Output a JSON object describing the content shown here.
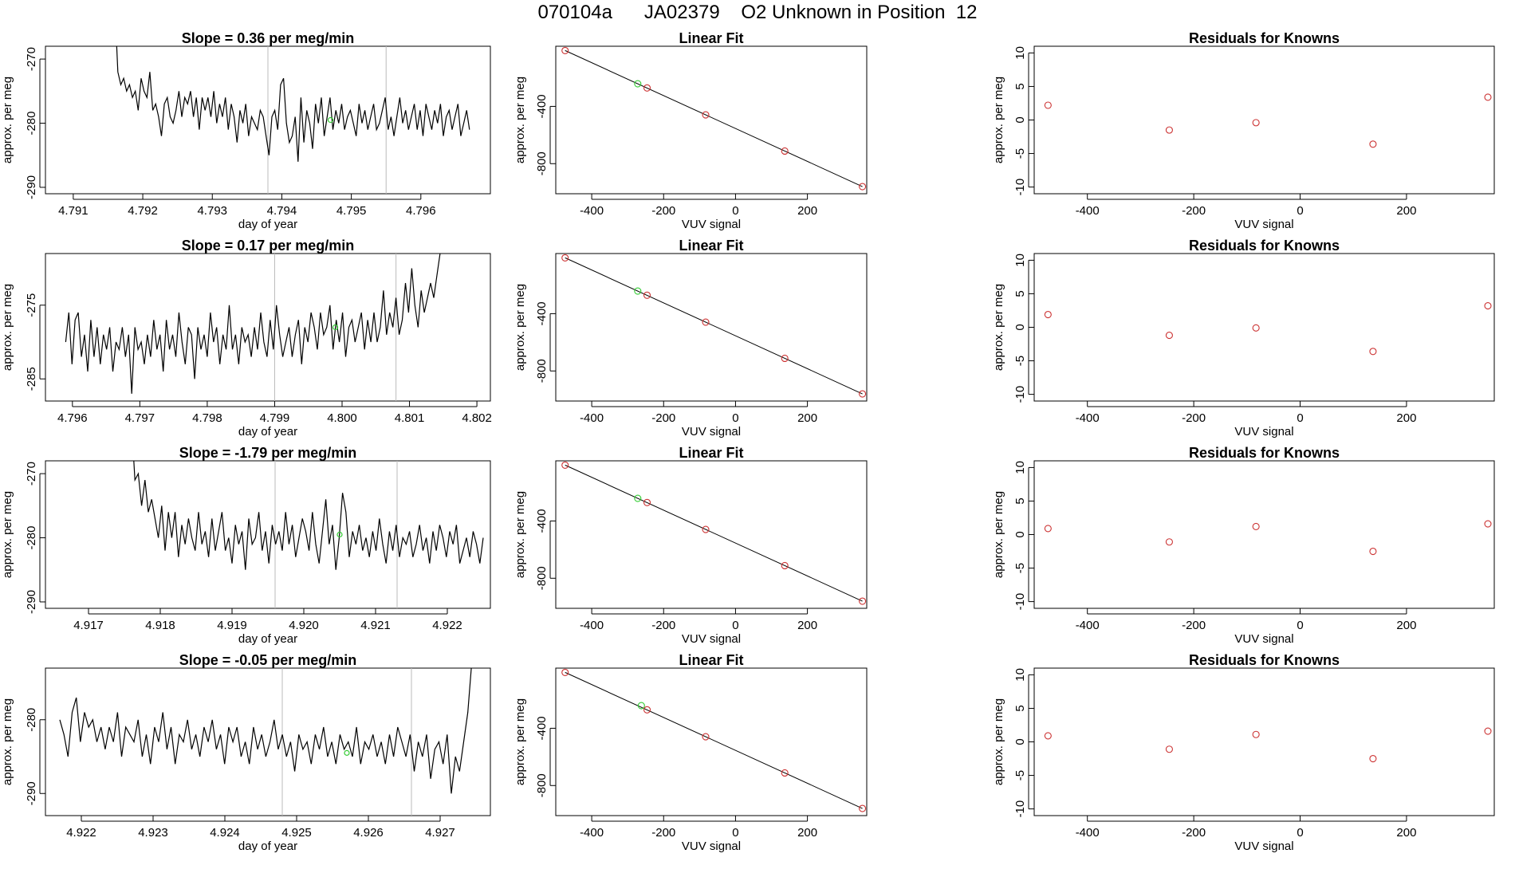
{
  "figure": {
    "title": "070104a      JA02379    O2 Unknown in Position  12"
  },
  "colors": {
    "line": "#000000",
    "known": "#cc3333",
    "unknown": "#33cc33",
    "marker_line": "#bbbbbb"
  },
  "chart_data": [
    {
      "type": "line",
      "row": 0,
      "title": "Slope =  0.36  per meg/min",
      "xlabel": "day of year",
      "ylabel": "approx. per meg",
      "xlim": [
        4.7906,
        4.797
      ],
      "ylim": [
        -291,
        -268
      ],
      "xticks": [
        4.791,
        4.792,
        4.793,
        4.794,
        4.795,
        4.796
      ],
      "xtick_labels": [
        "4.791",
        "4.792",
        "4.793",
        "4.794",
        "4.795",
        "4.796"
      ],
      "yticks": [
        -270,
        -280,
        -290
      ],
      "ytick_labels": [
        "-270",
        "-280",
        "-290"
      ],
      "markers_x": [
        4.7938,
        4.7955
      ],
      "series_x_start": 4.7916,
      "series_x_end": 4.7967,
      "series_y": [
        -262,
        -272,
        -274,
        -273,
        -275,
        -274,
        -276,
        -275,
        -278,
        -273,
        -275,
        -276,
        -272,
        -278,
        -277,
        -279,
        -282,
        -277,
        -276,
        -279,
        -280,
        -278,
        -275,
        -279,
        -276,
        -277,
        -275,
        -279,
        -276,
        -281,
        -276,
        -278,
        -276,
        -279,
        -275,
        -280,
        -277,
        -279,
        -276,
        -281,
        -277,
        -279,
        -283,
        -278,
        -280,
        -277,
        -282,
        -279,
        -280,
        -281,
        -278,
        -279,
        -282,
        -285,
        -279,
        -278,
        -281,
        -274,
        -273,
        -280,
        -283,
        -282,
        -279,
        -286,
        -276,
        -283,
        -278,
        -280,
        -284,
        -277,
        -280,
        -276,
        -282,
        -279,
        -276,
        -281,
        -278,
        -280,
        -277,
        -281,
        -279,
        -278,
        -280,
        -282,
        -277,
        -280,
        -278,
        -281,
        -279,
        -277,
        -281,
        -280,
        -278,
        -276,
        -281,
        -279,
        -282,
        -279,
        -276,
        -280,
        -278,
        -281,
        -279,
        -277,
        -281,
        -278,
        -282,
        -277,
        -279,
        -281,
        -278,
        -280,
        -277,
        -282,
        -279,
        -278,
        -281,
        -279,
        -277,
        -282,
        -280,
        -278,
        -281
      ],
      "unknown_point": {
        "x": 4.7947,
        "y": -279.5
      }
    },
    {
      "type": "line",
      "row": 1,
      "title": "Slope =  0.17  per meg/min",
      "xlabel": "day of year",
      "ylabel": "approx. per meg",
      "xlim": [
        4.7956,
        4.8022
      ],
      "ylim": [
        -288,
        -268
      ],
      "xticks": [
        4.796,
        4.797,
        4.798,
        4.799,
        4.8,
        4.801,
        4.802
      ],
      "xtick_labels": [
        "4.796",
        "4.797",
        "4.798",
        "4.799",
        "4.800",
        "4.801",
        "4.802"
      ],
      "yticks": [
        -275,
        -285
      ],
      "ytick_labels": [
        "-275",
        "-285"
      ],
      "markers_x": [
        4.799,
        4.8008
      ],
      "series_x_start": 4.7959,
      "series_x_end": 4.8015,
      "series_y": [
        -280,
        -276,
        -283,
        -277,
        -276,
        -282,
        -279,
        -284,
        -277,
        -282,
        -278,
        -283,
        -279,
        -281,
        -278,
        -284,
        -280,
        -281,
        -278,
        -282,
        -279,
        -287,
        -278,
        -281,
        -280,
        -283,
        -279,
        -282,
        -277,
        -281,
        -279,
        -284,
        -277,
        -281,
        -279,
        -282,
        -276,
        -280,
        -283,
        -278,
        -279,
        -285,
        -278,
        -281,
        -279,
        -282,
        -276,
        -280,
        -278,
        -283,
        -279,
        -281,
        -275,
        -281,
        -279,
        -283,
        -278,
        -280,
        -279,
        -282,
        -278,
        -281,
        -276,
        -280,
        -282,
        -277,
        -281,
        -275,
        -279,
        -282,
        -280,
        -278,
        -282,
        -279,
        -277,
        -283,
        -278,
        -280,
        -276,
        -278,
        -281,
        -276,
        -279,
        -278,
        -275,
        -281,
        -277,
        -280,
        -276,
        -282,
        -278,
        -277,
        -280,
        -278,
        -276,
        -281,
        -277,
        -280,
        -276,
        -280,
        -278,
        -273,
        -279,
        -276,
        -278,
        -274,
        -279,
        -277,
        -272,
        -276,
        -270,
        -275,
        -278,
        -273,
        -276,
        -274,
        -272,
        -274,
        -271,
        -268,
        -262
      ],
      "unknown_point": {
        "x": 4.7999,
        "y": -278
      }
    },
    {
      "type": "line",
      "row": 2,
      "title": "Slope =  -1.79  per meg/min",
      "xlabel": "day of year",
      "ylabel": "approx. per meg",
      "xlim": [
        4.9164,
        4.9226
      ],
      "ylim": [
        -291,
        -268
      ],
      "xticks": [
        4.917,
        4.918,
        4.919,
        4.92,
        4.921,
        4.922
      ],
      "xtick_labels": [
        "4.917",
        "4.918",
        "4.919",
        "4.920",
        "4.921",
        "4.922"
      ],
      "yticks": [
        -270,
        -280,
        -290
      ],
      "ytick_labels": [
        "-270",
        "-280",
        "-290"
      ],
      "markers_x": [
        4.9196,
        4.9213
      ],
      "series_x_start": 4.9176,
      "series_x_end": 4.9225,
      "series_y": [
        -262,
        -271,
        -270,
        -275,
        -271,
        -276,
        -274,
        -277,
        -280,
        -275,
        -282,
        -276,
        -280,
        -276,
        -283,
        -278,
        -281,
        -277,
        -280,
        -282,
        -276,
        -281,
        -279,
        -283,
        -277,
        -282,
        -279,
        -276,
        -282,
        -280,
        -284,
        -278,
        -281,
        -279,
        -285,
        -277,
        -281,
        -280,
        -276,
        -282,
        -279,
        -284,
        -278,
        -281,
        -279,
        -282,
        -276,
        -281,
        -278,
        -283,
        -280,
        -277,
        -279,
        -282,
        -276,
        -281,
        -284,
        -279,
        -274,
        -281,
        -278,
        -285,
        -280,
        -273,
        -276,
        -283,
        -279,
        -281,
        -278,
        -282,
        -280,
        -283,
        -279,
        -282,
        -277,
        -281,
        -284,
        -279,
        -282,
        -278,
        -283,
        -280,
        -281,
        -279,
        -283,
        -281,
        -278,
        -282,
        -280,
        -284,
        -279,
        -282,
        -278,
        -280,
        -283,
        -279,
        -281,
        -278,
        -284,
        -282,
        -280,
        -283,
        -279,
        -281,
        -284,
        -280
      ],
      "unknown_point": {
        "x": 4.9205,
        "y": -279.5
      }
    },
    {
      "type": "line",
      "row": 3,
      "title": "Slope =  -0.05  per meg/min",
      "xlabel": "day of year",
      "ylabel": "approx. per meg",
      "xlim": [
        4.9215,
        4.9277
      ],
      "ylim": [
        -293,
        -273
      ],
      "xticks": [
        4.922,
        4.923,
        4.924,
        4.925,
        4.926,
        4.927
      ],
      "xtick_labels": [
        "4.922",
        "4.923",
        "4.924",
        "4.925",
        "4.926",
        "4.927"
      ],
      "yticks": [
        -280,
        -290
      ],
      "ytick_labels": [
        "-280",
        "-290"
      ],
      "markers_x": [
        4.9248,
        4.9266
      ],
      "series_x_start": 4.9217,
      "series_x_end": 4.9275,
      "series_y": [
        -280,
        -282,
        -285,
        -279,
        -277,
        -283,
        -279,
        -281,
        -280,
        -283,
        -281,
        -284,
        -281,
        -283,
        -279,
        -285,
        -281,
        -282,
        -283,
        -280,
        -285,
        -282,
        -286,
        -281,
        -283,
        -279,
        -284,
        -281,
        -286,
        -282,
        -283,
        -280,
        -284,
        -282,
        -285,
        -281,
        -283,
        -280,
        -284,
        -282,
        -286,
        -281,
        -283,
        -281,
        -285,
        -283,
        -286,
        -281,
        -284,
        -282,
        -285,
        -283,
        -280,
        -284,
        -282,
        -285,
        -283,
        -287,
        -282,
        -284,
        -283,
        -286,
        -282,
        -284,
        -281,
        -285,
        -283,
        -286,
        -282,
        -284,
        -283,
        -285,
        -281,
        -286,
        -283,
        -284,
        -282,
        -285,
        -283,
        -286,
        -282,
        -285,
        -281,
        -283,
        -285,
        -282,
        -287,
        -283,
        -285,
        -282,
        -288,
        -284,
        -283,
        -286,
        -282,
        -290,
        -285,
        -287,
        -283,
        -279,
        -272,
        -265
      ],
      "unknown_point": {
        "x": 4.9257,
        "y": -284.5
      }
    },
    {
      "type": "scatter",
      "row": 0,
      "title": "Linear Fit",
      "xlabel": "VUV signal",
      "ylabel": "approx. per meg",
      "xlim": [
        -500,
        365
      ],
      "ylim": [
        -1010,
        20
      ],
      "xticks": [
        -400,
        -200,
        0,
        200
      ],
      "xtick_labels": [
        "-400",
        "-200",
        "0",
        "200"
      ],
      "yticks": [
        -400,
        -800
      ],
      "ytick_labels": [
        "-400",
        "-800"
      ],
      "fit_line": {
        "x": [
          -474,
          353
        ],
        "y": [
          -10,
          -960
        ]
      },
      "known_points": [
        {
          "x": -474,
          "y": -10
        },
        {
          "x": -246,
          "y": -271
        },
        {
          "x": -83,
          "y": -459
        },
        {
          "x": 137,
          "y": -712
        },
        {
          "x": 353,
          "y": -960
        }
      ],
      "unknown_points": [
        {
          "x": -272,
          "y": -242
        }
      ]
    },
    {
      "type": "scatter",
      "row": 1,
      "title": "Linear Fit",
      "xlabel": "VUV signal",
      "ylabel": "approx. per meg",
      "xlim": [
        -500,
        365
      ],
      "ylim": [
        -1010,
        20
      ],
      "xticks": [
        -400,
        -200,
        0,
        200
      ],
      "xtick_labels": [
        "-400",
        "-200",
        "0",
        "200"
      ],
      "yticks": [
        -400,
        -800
      ],
      "ytick_labels": [
        "-400",
        "-800"
      ],
      "fit_line": {
        "x": [
          -474,
          353
        ],
        "y": [
          -10,
          -960
        ]
      },
      "known_points": [
        {
          "x": -474,
          "y": -10
        },
        {
          "x": -246,
          "y": -271
        },
        {
          "x": -83,
          "y": -459
        },
        {
          "x": 137,
          "y": -712
        },
        {
          "x": 353,
          "y": -960
        }
      ],
      "unknown_points": [
        {
          "x": -272,
          "y": -242
        }
      ]
    },
    {
      "type": "scatter",
      "row": 2,
      "title": "Linear Fit",
      "xlabel": "VUV signal",
      "ylabel": "approx. per meg",
      "xlim": [
        -500,
        365
      ],
      "ylim": [
        -1010,
        20
      ],
      "xticks": [
        -400,
        -200,
        0,
        200
      ],
      "xtick_labels": [
        "-400",
        "-200",
        "0",
        "200"
      ],
      "yticks": [
        -400,
        -800
      ],
      "ytick_labels": [
        "-400",
        "-800"
      ],
      "fit_line": {
        "x": [
          -474,
          353
        ],
        "y": [
          -10,
          -960
        ]
      },
      "known_points": [
        {
          "x": -474,
          "y": -10
        },
        {
          "x": -246,
          "y": -271
        },
        {
          "x": -83,
          "y": -459
        },
        {
          "x": 137,
          "y": -712
        },
        {
          "x": 353,
          "y": -960
        }
      ],
      "unknown_points": [
        {
          "x": -272,
          "y": -242
        }
      ]
    },
    {
      "type": "scatter",
      "row": 3,
      "title": "Linear Fit",
      "xlabel": "VUV signal",
      "ylabel": "approx. per meg",
      "xlim": [
        -500,
        365
      ],
      "ylim": [
        -1010,
        20
      ],
      "xticks": [
        -400,
        -200,
        0,
        200
      ],
      "xtick_labels": [
        "-400",
        "-200",
        "0",
        "200"
      ],
      "yticks": [
        -400,
        -800
      ],
      "ytick_labels": [
        "-400",
        "-800"
      ],
      "fit_line": {
        "x": [
          -474,
          353
        ],
        "y": [
          -10,
          -960
        ]
      },
      "known_points": [
        {
          "x": -474,
          "y": -10
        },
        {
          "x": -246,
          "y": -271
        },
        {
          "x": -83,
          "y": -459
        },
        {
          "x": 137,
          "y": -712
        },
        {
          "x": 353,
          "y": -960
        }
      ],
      "unknown_points": [
        {
          "x": -262,
          "y": -242
        }
      ]
    },
    {
      "type": "scatter",
      "row": 0,
      "title": "Residuals for Knowns",
      "xlabel": "VUV signal",
      "ylabel": "approx. per meg",
      "xlim": [
        -500,
        365
      ],
      "ylim": [
        -11,
        11
      ],
      "xticks": [
        -400,
        -200,
        0,
        200
      ],
      "xtick_labels": [
        "-400",
        "-200",
        "0",
        "200"
      ],
      "yticks": [
        10,
        5,
        0,
        -5,
        -10
      ],
      "ytick_labels": [
        "10",
        "5",
        "0",
        "-5",
        "-10"
      ],
      "known_points": [
        {
          "x": -474,
          "y": 2.2
        },
        {
          "x": -246,
          "y": -1.5
        },
        {
          "x": -83,
          "y": -0.4
        },
        {
          "x": 137,
          "y": -3.6
        },
        {
          "x": 353,
          "y": 3.4
        }
      ]
    },
    {
      "type": "scatter",
      "row": 1,
      "title": "Residuals for Knowns",
      "xlabel": "VUV signal",
      "ylabel": "approx. per meg",
      "xlim": [
        -500,
        365
      ],
      "ylim": [
        -11,
        11
      ],
      "xticks": [
        -400,
        -200,
        0,
        200
      ],
      "xtick_labels": [
        "-400",
        "-200",
        "0",
        "200"
      ],
      "yticks": [
        10,
        5,
        0,
        -5,
        -10
      ],
      "ytick_labels": [
        "10",
        "5",
        "0",
        "-5",
        "-10"
      ],
      "known_points": [
        {
          "x": -474,
          "y": 1.9
        },
        {
          "x": -246,
          "y": -1.2
        },
        {
          "x": -83,
          "y": -0.1
        },
        {
          "x": 137,
          "y": -3.6
        },
        {
          "x": 353,
          "y": 3.2
        }
      ]
    },
    {
      "type": "scatter",
      "row": 2,
      "title": "Residuals for Knowns",
      "xlabel": "VUV signal",
      "ylabel": "approx. per meg",
      "xlim": [
        -500,
        365
      ],
      "ylim": [
        -11,
        11
      ],
      "xticks": [
        -400,
        -200,
        0,
        200
      ],
      "xtick_labels": [
        "-400",
        "-200",
        "0",
        "200"
      ],
      "yticks": [
        10,
        5,
        0,
        -5,
        -10
      ],
      "ytick_labels": [
        "10",
        "5",
        "0",
        "-5",
        "-10"
      ],
      "known_points": [
        {
          "x": -474,
          "y": 0.9
        },
        {
          "x": -246,
          "y": -1.1
        },
        {
          "x": -83,
          "y": 1.2
        },
        {
          "x": 137,
          "y": -2.5
        },
        {
          "x": 353,
          "y": 1.6
        }
      ]
    },
    {
      "type": "scatter",
      "row": 3,
      "title": "Residuals for Knowns",
      "xlabel": "VUV signal",
      "ylabel": "approx. per meg",
      "xlim": [
        -500,
        365
      ],
      "ylim": [
        -11,
        11
      ],
      "xticks": [
        -400,
        -200,
        0,
        200
      ],
      "xtick_labels": [
        "-400",
        "-200",
        "0",
        "200"
      ],
      "yticks": [
        10,
        5,
        0,
        -5,
        -10
      ],
      "ytick_labels": [
        "10",
        "5",
        "0",
        "-5",
        "-10"
      ],
      "known_points": [
        {
          "x": -474,
          "y": 0.9
        },
        {
          "x": -246,
          "y": -1.1
        },
        {
          "x": -83,
          "y": 1.1
        },
        {
          "x": 137,
          "y": -2.5
        },
        {
          "x": 353,
          "y": 1.6
        }
      ]
    }
  ]
}
